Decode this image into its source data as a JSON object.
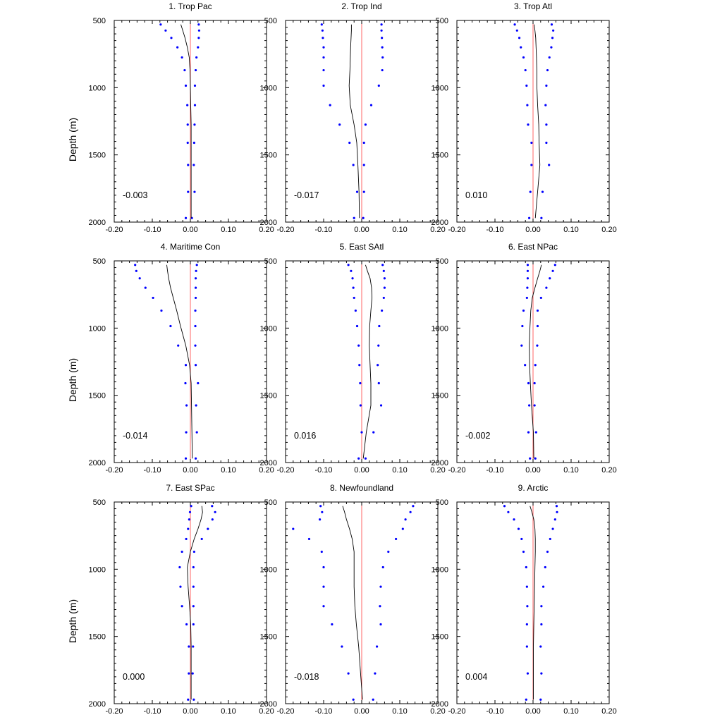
{
  "chart_data": [
    {
      "type": "line",
      "title": "1. Trop Pac",
      "stat_label": "-0.003",
      "xlim": [
        -0.2,
        0.2
      ],
      "ylim": [
        500,
        2000
      ],
      "y_reversed": true,
      "xticks": [
        "-0.20",
        "-0.10",
        "0.00",
        "0.10",
        "0.20"
      ],
      "yticks": [
        "500",
        "1000",
        "1500",
        "2000"
      ],
      "ylabel": "Depth (m)",
      "zero_line_color": "#ff6666",
      "mean_color": "#000000",
      "spread_color": "#0000ff",
      "depths": [
        530,
        575,
        630,
        700,
        775,
        870,
        985,
        1130,
        1275,
        1410,
        1575,
        1775,
        1970
      ],
      "mean": [
        -0.025,
        -0.02,
        -0.014,
        -0.008,
        -0.003,
        -0.001,
        0.0,
        0.001,
        0.002,
        0.002,
        0.002,
        0.002,
        0.002
      ],
      "lower": [
        -0.078,
        -0.065,
        -0.05,
        -0.034,
        -0.022,
        -0.015,
        -0.012,
        -0.008,
        -0.007,
        -0.007,
        -0.006,
        -0.006,
        -0.012
      ],
      "upper": [
        0.022,
        0.023,
        0.022,
        0.02,
        0.016,
        0.014,
        0.012,
        0.012,
        0.011,
        0.01,
        0.009,
        0.011,
        0.004
      ]
    },
    {
      "type": "line",
      "title": "2. Trop Ind",
      "stat_label": "-0.017",
      "xlim": [
        -0.2,
        0.2
      ],
      "ylim": [
        500,
        2000
      ],
      "y_reversed": true,
      "xticks": [
        "-0.20",
        "-0.10",
        "0.00",
        "0.10",
        "0.20"
      ],
      "yticks": [
        "500",
        "1000",
        "1500",
        "2000"
      ],
      "ylabel": "",
      "zero_line_color": "#ff6666",
      "mean_color": "#000000",
      "spread_color": "#0000ff",
      "depths": [
        530,
        575,
        630,
        700,
        775,
        870,
        985,
        1130,
        1275,
        1410,
        1575,
        1775,
        1970
      ],
      "mean": [
        -0.027,
        -0.027,
        -0.028,
        -0.029,
        -0.03,
        -0.031,
        -0.033,
        -0.03,
        -0.02,
        -0.013,
        -0.01,
        -0.007,
        -0.006
      ],
      "lower": [
        -0.105,
        -0.103,
        -0.102,
        -0.1,
        -0.1,
        -0.1,
        -0.1,
        -0.083,
        -0.058,
        -0.032,
        -0.022,
        -0.012,
        -0.02
      ],
      "upper": [
        0.052,
        0.052,
        0.053,
        0.054,
        0.055,
        0.054,
        0.045,
        0.025,
        0.01,
        0.006,
        0.006,
        0.006,
        0.004
      ]
    },
    {
      "type": "line",
      "title": "3. Trop Atl",
      "stat_label": "0.010",
      "xlim": [
        -0.2,
        0.2
      ],
      "ylim": [
        500,
        2000
      ],
      "y_reversed": true,
      "xticks": [
        "-0.20",
        "-0.10",
        "0.00",
        "0.10",
        "0.20"
      ],
      "yticks": [
        "500",
        "1000",
        "1500",
        "2000"
      ],
      "ylabel": "",
      "zero_line_color": "#ff6666",
      "mean_color": "#000000",
      "spread_color": "#0000ff",
      "depths": [
        530,
        575,
        630,
        700,
        775,
        870,
        985,
        1130,
        1275,
        1410,
        1575,
        1775,
        1970
      ],
      "mean": [
        0.003,
        0.005,
        0.007,
        0.008,
        0.009,
        0.01,
        0.01,
        0.012,
        0.015,
        0.016,
        0.018,
        0.012,
        0.006
      ],
      "lower": [
        -0.048,
        -0.042,
        -0.036,
        -0.032,
        -0.025,
        -0.02,
        -0.017,
        -0.015,
        -0.013,
        -0.004,
        -0.004,
        -0.007,
        -0.01
      ],
      "upper": [
        0.049,
        0.053,
        0.051,
        0.048,
        0.043,
        0.038,
        0.035,
        0.033,
        0.035,
        0.035,
        0.042,
        0.025,
        0.022
      ]
    },
    {
      "type": "line",
      "title": "4. Maritime Con",
      "stat_label": "-0.014",
      "xlim": [
        -0.2,
        0.2
      ],
      "ylim": [
        500,
        2000
      ],
      "y_reversed": true,
      "xticks": [
        "-0.20",
        "-0.10",
        "0.00",
        "0.10",
        "0.20"
      ],
      "yticks": [
        "500",
        "1000",
        "1500",
        "2000"
      ],
      "ylabel": "Depth (m)",
      "zero_line_color": "#ff6666",
      "mean_color": "#000000",
      "spread_color": "#0000ff",
      "depths": [
        530,
        575,
        630,
        700,
        775,
        870,
        985,
        1130,
        1275,
        1410,
        1575,
        1775,
        1970
      ],
      "mean": [
        -0.062,
        -0.06,
        -0.057,
        -0.052,
        -0.045,
        -0.036,
        -0.026,
        -0.012,
        -0.002,
        0.002,
        0.003,
        0.004,
        0.005
      ],
      "lower": [
        -0.145,
        -0.142,
        -0.133,
        -0.118,
        -0.098,
        -0.076,
        -0.052,
        -0.032,
        -0.012,
        -0.013,
        -0.01,
        -0.011,
        -0.012
      ],
      "upper": [
        0.017,
        0.015,
        0.014,
        0.014,
        0.014,
        0.013,
        0.013,
        0.013,
        0.014,
        0.02,
        0.015,
        0.017,
        0.014
      ]
    },
    {
      "type": "line",
      "title": "5. East SAtl",
      "stat_label": "0.016",
      "xlim": [
        -0.2,
        0.2
      ],
      "ylim": [
        500,
        2000
      ],
      "y_reversed": true,
      "xticks": [
        "-0.20",
        "-0.10",
        "0.00",
        "0.10",
        "0.20"
      ],
      "yticks": [
        "500",
        "1000",
        "1500",
        "2000"
      ],
      "ylabel": "",
      "zero_line_color": "#ff6666",
      "mean_color": "#000000",
      "spread_color": "#0000ff",
      "depths": [
        530,
        575,
        630,
        700,
        775,
        870,
        985,
        1130,
        1275,
        1410,
        1575,
        1775,
        1970
      ],
      "mean": [
        0.01,
        0.015,
        0.022,
        0.026,
        0.027,
        0.024,
        0.021,
        0.02,
        0.022,
        0.024,
        0.024,
        0.012,
        0.004
      ],
      "lower": [
        -0.035,
        -0.028,
        -0.024,
        -0.022,
        -0.02,
        -0.016,
        -0.012,
        -0.008,
        -0.006,
        -0.004,
        -0.003,
        0.0,
        -0.008
      ],
      "upper": [
        0.055,
        0.058,
        0.06,
        0.06,
        0.058,
        0.053,
        0.046,
        0.044,
        0.042,
        0.045,
        0.051,
        0.031,
        0.01
      ]
    },
    {
      "type": "line",
      "title": "6. East NPac",
      "stat_label": "-0.002",
      "xlim": [
        -0.2,
        0.2
      ],
      "ylim": [
        500,
        2000
      ],
      "y_reversed": true,
      "xticks": [
        "-0.20",
        "-0.10",
        "0.00",
        "0.10",
        "0.20"
      ],
      "yticks": [
        "500",
        "1000",
        "1500",
        "2000"
      ],
      "ylabel": "",
      "zero_line_color": "#ff6666",
      "mean_color": "#000000",
      "spread_color": "#0000ff",
      "depths": [
        530,
        575,
        630,
        700,
        775,
        870,
        985,
        1130,
        1275,
        1410,
        1575,
        1775,
        1970
      ],
      "mean": [
        0.022,
        0.018,
        0.012,
        0.005,
        -0.002,
        -0.006,
        -0.008,
        -0.01,
        -0.009,
        -0.007,
        -0.004,
        0.001,
        0.002
      ],
      "lower": [
        -0.014,
        -0.014,
        -0.014,
        -0.015,
        -0.016,
        -0.025,
        -0.028,
        -0.03,
        -0.021,
        -0.012,
        -0.01,
        -0.012,
        -0.008
      ],
      "upper": [
        0.058,
        0.052,
        0.044,
        0.035,
        0.021,
        0.012,
        0.012,
        0.011,
        0.006,
        0.004,
        0.004,
        0.008,
        0.006
      ]
    },
    {
      "type": "line",
      "title": "7. East SPac",
      "stat_label": "0.000",
      "xlim": [
        -0.2,
        0.2
      ],
      "ylim": [
        500,
        2000
      ],
      "y_reversed": true,
      "xticks": [
        "-0.20",
        "-0.10",
        "0.00",
        "0.10",
        "0.20"
      ],
      "yticks": [
        "500",
        "1000",
        "1500",
        "2000"
      ],
      "ylabel": "Depth (m)",
      "zero_line_color": "#ff6666",
      "mean_color": "#000000",
      "spread_color": "#0000ff",
      "depths": [
        530,
        575,
        630,
        700,
        775,
        870,
        985,
        1130,
        1275,
        1410,
        1575,
        1775,
        1970
      ],
      "mean": [
        0.03,
        0.032,
        0.028,
        0.02,
        0.01,
        0.0,
        -0.008,
        -0.006,
        -0.002,
        0.001,
        0.002,
        0.002,
        0.002
      ],
      "lower": [
        0.002,
        -0.001,
        -0.003,
        -0.006,
        -0.011,
        -0.022,
        -0.028,
        -0.026,
        -0.022,
        -0.01,
        -0.004,
        -0.004,
        -0.006
      ],
      "upper": [
        0.057,
        0.065,
        0.058,
        0.046,
        0.03,
        0.01,
        0.008,
        0.008,
        0.008,
        0.008,
        0.007,
        0.006,
        0.009
      ]
    },
    {
      "type": "line",
      "title": "8. Newfoundland",
      "stat_label": "-0.018",
      "xlim": [
        -0.2,
        0.2
      ],
      "ylim": [
        500,
        2000
      ],
      "y_reversed": true,
      "xticks": [
        "-0.20",
        "-0.10",
        "0.00",
        "0.10",
        "0.20"
      ],
      "yticks": [
        "500",
        "1000",
        "1500",
        "2000"
      ],
      "ylabel": "",
      "zero_line_color": "#ff6666",
      "mean_color": "#000000",
      "spread_color": "#0000ff",
      "depths": [
        530,
        575,
        630,
        700,
        775,
        870,
        985,
        1130,
        1275,
        1410,
        1575,
        1775,
        1970
      ],
      "mean": [
        -0.05,
        -0.045,
        -0.04,
        -0.032,
        -0.025,
        -0.02,
        -0.02,
        -0.02,
        -0.018,
        -0.014,
        -0.008,
        -0.003,
        0.002
      ],
      "lower": [
        -0.108,
        -0.104,
        -0.11,
        -0.18,
        -0.138,
        -0.105,
        -0.1,
        -0.1,
        -0.1,
        -0.078,
        -0.052,
        -0.035,
        -0.022
      ],
      "upper": [
        0.135,
        0.128,
        0.115,
        0.108,
        0.09,
        0.07,
        0.056,
        0.05,
        0.048,
        0.05,
        0.04,
        0.035,
        0.03
      ]
    },
    {
      "type": "line",
      "title": "9. Arctic",
      "stat_label": "0.004",
      "xlim": [
        -0.2,
        0.2
      ],
      "ylim": [
        500,
        2000
      ],
      "y_reversed": true,
      "xticks": [
        "-0.20",
        "-0.10",
        "0.00",
        "0.10",
        "0.20"
      ],
      "yticks": [
        "500",
        "1000",
        "1500",
        "2000"
      ],
      "ylabel": "",
      "zero_line_color": "#ff6666",
      "mean_color": "#000000",
      "spread_color": "#0000ff",
      "depths": [
        530,
        575,
        630,
        700,
        775,
        870,
        985,
        1130,
        1275,
        1410,
        1575,
        1775,
        1970
      ],
      "mean": [
        -0.008,
        -0.003,
        0.002,
        0.005,
        0.006,
        0.006,
        0.005,
        0.004,
        0.003,
        0.002,
        0.001,
        0.001,
        0.001
      ],
      "lower": [
        -0.075,
        -0.065,
        -0.05,
        -0.038,
        -0.03,
        -0.025,
        -0.018,
        -0.016,
        -0.015,
        -0.016,
        -0.016,
        -0.014,
        -0.018
      ],
      "upper": [
        0.062,
        0.063,
        0.058,
        0.052,
        0.045,
        0.038,
        0.032,
        0.027,
        0.022,
        0.022,
        0.02,
        0.022,
        0.02
      ]
    }
  ]
}
